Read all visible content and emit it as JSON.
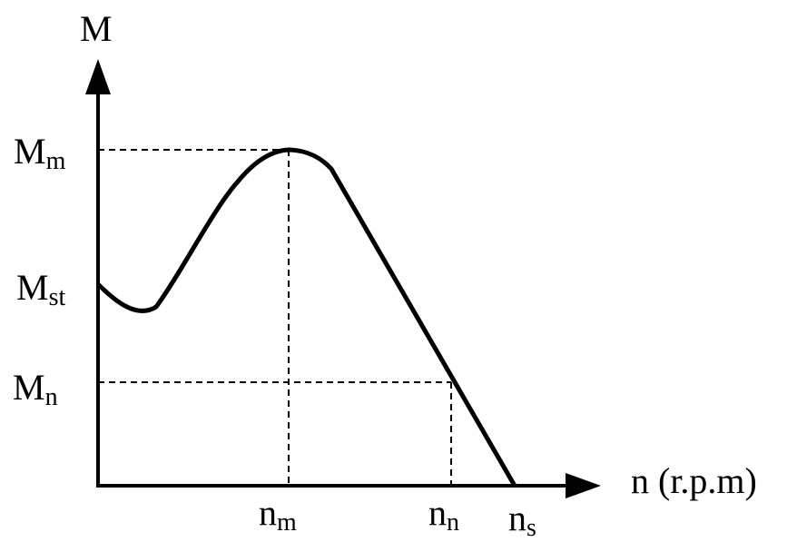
{
  "axes": {
    "y_label": "M",
    "x_label": "n (r.p.m)"
  },
  "y_marks": [
    {
      "symbol": "M",
      "subscript": "m"
    },
    {
      "symbol": "M",
      "subscript": "st"
    },
    {
      "symbol": "M",
      "subscript": "n"
    }
  ],
  "x_marks": [
    {
      "symbol": "n",
      "subscript": "m"
    },
    {
      "symbol": "n",
      "subscript": "n"
    },
    {
      "symbol": "n",
      "subscript": "s"
    }
  ]
}
